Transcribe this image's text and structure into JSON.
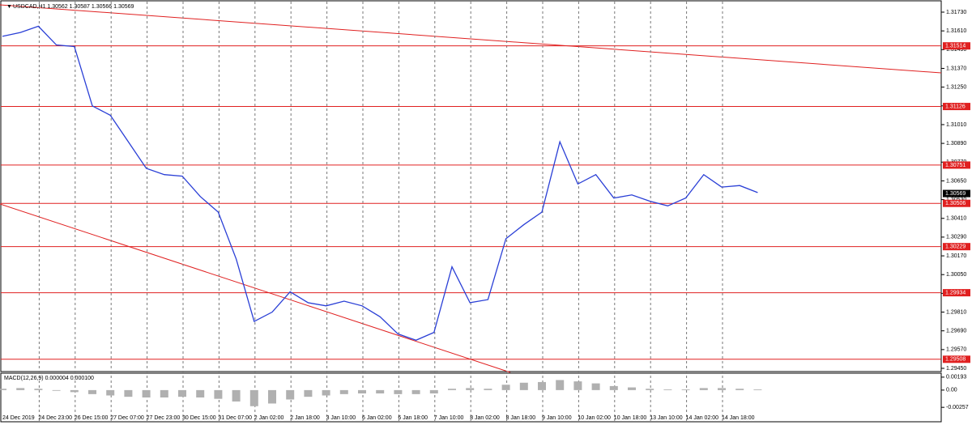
{
  "header": {
    "symbol_info": "USDCAD,H1  1.30562 1.30587 1.30566 1.30569"
  },
  "chart_data": [
    {
      "type": "line",
      "color": "#2a3fd6",
      "grid": true,
      "categories": [
        "24 Dec 2019",
        null,
        "24 Dec 23:00",
        null,
        "26 Dec 15:00",
        null,
        "27 Dec 07:00",
        null,
        "27 Dec 23:00",
        null,
        "30 Dec 15:00",
        null,
        "31 Dec 07:00",
        null,
        "2 Jan 02:00",
        null,
        "2 Jan 18:00",
        null,
        "3 Jan 10:00",
        null,
        "6 Jan 02:00",
        null,
        "6 Jan 18:00",
        null,
        "7 Jan 10:00",
        null,
        "8 Jan 02:00",
        null,
        "8 Jan 18:00",
        null,
        "9 Jan 10:00",
        null,
        "10 Jan 02:00",
        null,
        "10 Jan 18:00",
        null,
        "13 Jan 10:00",
        null,
        "14 Jan 02:00",
        null,
        "14 Jan 18:00",
        null,
        null
      ],
      "values": [
        1.31575,
        1.316,
        1.3164,
        1.3152,
        1.3151,
        1.3113,
        1.3107,
        1.309,
        1.3073,
        1.3069,
        1.3068,
        1.3055,
        1.3045,
        1.3015,
        1.2975,
        1.2981,
        1.2994,
        1.2987,
        1.2985,
        1.2988,
        1.2985,
        1.2978,
        1.2967,
        1.2963,
        1.2968,
        1.301,
        1.2987,
        1.2989,
        1.3028,
        1.3037,
        1.3045,
        1.309,
        1.3063,
        1.3069,
        1.3054,
        1.3056,
        1.3052,
        1.3049,
        1.3054,
        1.3069,
        1.3061,
        1.3062,
        1.30575
      ],
      "ylim": [
        1.2945,
        1.3173
      ],
      "yticks": [
        {
          "value": 1.2945,
          "label": "1.29450"
        },
        {
          "value": 1.2957,
          "label": "1.29570"
        },
        {
          "value": 1.2969,
          "label": "1.29690"
        },
        {
          "value": 1.2981,
          "label": "1.29810"
        },
        {
          "value": 1.2993,
          "label": "1.29930"
        },
        {
          "value": 1.3005,
          "label": "1.30050"
        },
        {
          "value": 1.3017,
          "label": "1.30170"
        },
        {
          "value": 1.3029,
          "label": "1.30290"
        },
        {
          "value": 1.3041,
          "label": "1.30410"
        },
        {
          "value": 1.3053,
          "label": "1.30530"
        },
        {
          "value": 1.3065,
          "label": "1.30650"
        },
        {
          "value": 1.3077,
          "label": "1.30770"
        },
        {
          "value": 1.3089,
          "label": "1.30890"
        },
        {
          "value": 1.3101,
          "label": "1.31010"
        },
        {
          "value": 1.3113,
          "label": "1.31130"
        },
        {
          "value": 1.3125,
          "label": "1.31250"
        },
        {
          "value": 1.3137,
          "label": "1.31370"
        },
        {
          "value": 1.3149,
          "label": "1.31490"
        },
        {
          "value": 1.3161,
          "label": "1.31610"
        },
        {
          "value": 1.3173,
          "label": "1.31730"
        }
      ],
      "levels": [
        {
          "value": 1.31514,
          "label": "1.31514"
        },
        {
          "value": 1.31126,
          "label": "1.31126"
        },
        {
          "value": 1.30751,
          "label": "1.30751"
        },
        {
          "value": 1.30506,
          "label": "1.30506"
        },
        {
          "value": 1.30229,
          "label": "1.30229"
        },
        {
          "value": 1.29934,
          "label": "1.29934"
        },
        {
          "value": 1.29508,
          "label": "1.29508"
        }
      ],
      "current": {
        "value": 1.30569,
        "label": "1.30569"
      }
    },
    {
      "type": "bar",
      "title": "MACD(12,26,9) 0.000004 0.000100",
      "color": "#b0b0b0",
      "values": [
        0.0002,
        0.0003,
        0.0002,
        -0.0001,
        -0.0003,
        -0.0006,
        -0.0008,
        -0.001,
        -0.0011,
        -0.0011,
        -0.001,
        -0.0011,
        -0.0013,
        -0.0017,
        -0.0024,
        -0.002,
        -0.0014,
        -0.001,
        -0.0008,
        -0.0006,
        -0.0005,
        -0.0005,
        -0.0006,
        -0.0006,
        -0.0005,
        0.0002,
        0.0003,
        0.0002,
        0.0008,
        0.0011,
        0.0012,
        0.0015,
        0.0013,
        0.001,
        0.0006,
        0.0004,
        0.0002,
        0.0001,
        0.0001,
        0.0003,
        0.0003,
        0.0002,
        0.0001
      ],
      "ylim": [
        -0.0046,
        0.0024
      ],
      "yticks": [
        {
          "value": 0.00193,
          "label": "0.00193"
        },
        {
          "value": 0,
          "label": "0.00"
        },
        {
          "value": -0.00257,
          "label": "-0.00257"
        }
      ]
    }
  ]
}
